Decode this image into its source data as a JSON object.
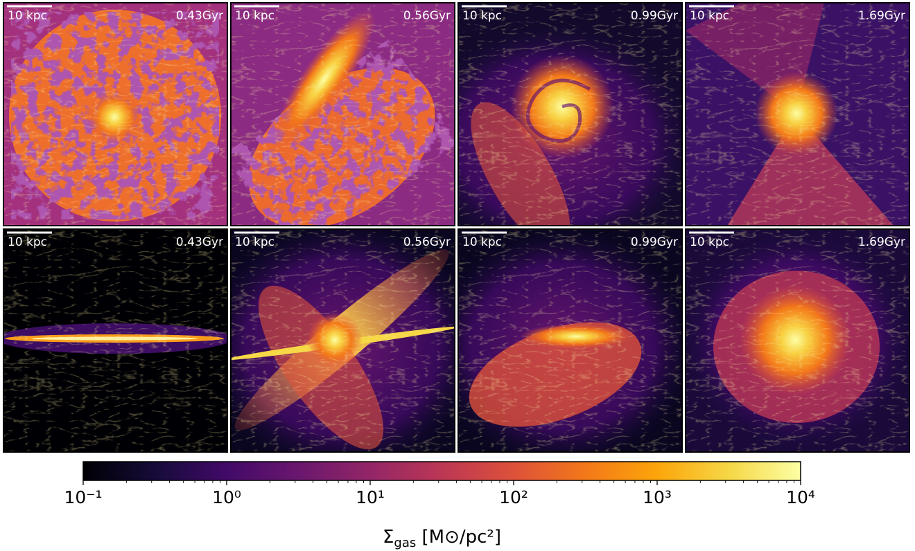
{
  "panels": [
    {
      "scale_label": "10 kpc",
      "time": "0.43Gyr"
    },
    {
      "scale_label": "10 kpc",
      "time": "0.56Gyr"
    },
    {
      "scale_label": "10 kpc",
      "time": "0.99Gyr"
    },
    {
      "scale_label": "10 kpc",
      "time": "1.69Gyr"
    },
    {
      "scale_label": "10 kpc",
      "time": "0.43Gyr"
    },
    {
      "scale_label": "10 kpc",
      "time": "0.56Gyr"
    },
    {
      "scale_label": "10 kpc",
      "time": "0.99Gyr"
    },
    {
      "scale_label": "10 kpc",
      "time": "1.69Gyr"
    }
  ],
  "colorbar": {
    "colormap": "inferno",
    "log": true,
    "xlim": [
      0.1,
      10000
    ],
    "xticks": [
      {
        "value": 0.1,
        "label": "10⁻¹"
      },
      {
        "value": 1,
        "label": "10⁰"
      },
      {
        "value": 10,
        "label": "10¹"
      },
      {
        "value": 100,
        "label": "10²"
      },
      {
        "value": 1000,
        "label": "10³"
      },
      {
        "value": 10000,
        "label": "10⁴"
      }
    ],
    "label": {
      "symbol": "Σ",
      "subscript": "gas",
      "unit": " [M⊙/pc²]"
    }
  }
}
